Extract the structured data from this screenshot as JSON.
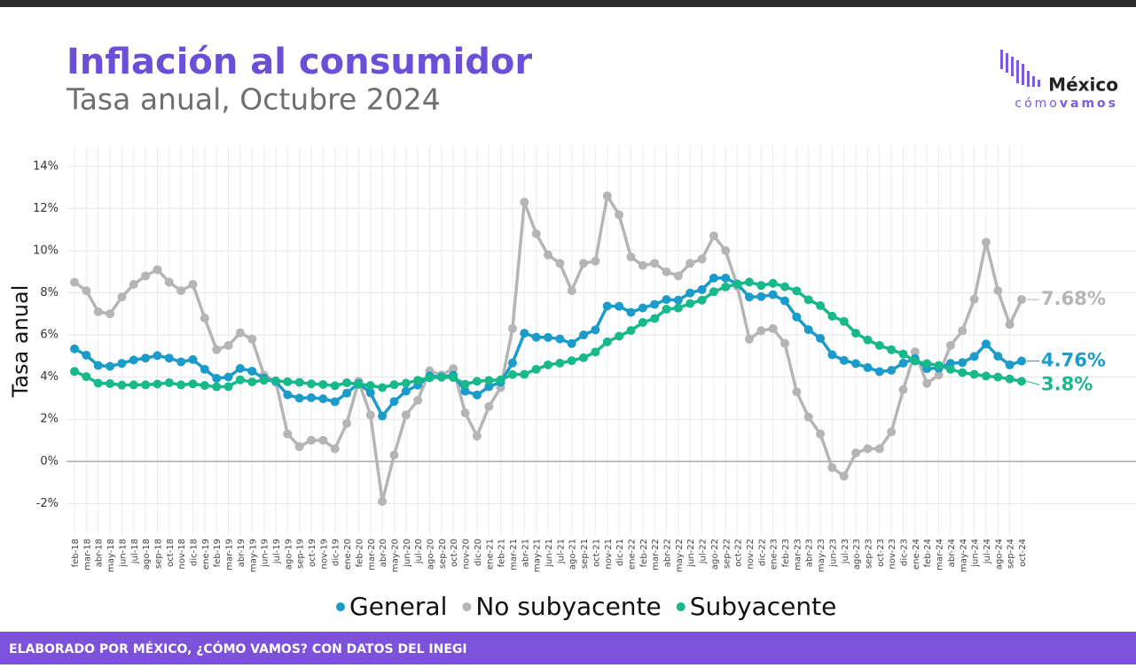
{
  "chart_data": {
    "type": "line",
    "title": "Inflación al consumidor",
    "subtitle": "Tasa anual, Octubre 2024",
    "y_label": "Tasa anual",
    "footer": "ELABORADO POR MÉXICO, ¿CÓMO VAMOS? CON DATOS DEL INEGI",
    "logo": {
      "top": "México",
      "bottom_light": "cómo",
      "bottom_bold": "vamos"
    },
    "categories": [
      "feb-18",
      "mar-18",
      "abr-18",
      "may-18",
      "jun-18",
      "jul-18",
      "ago-18",
      "sep-18",
      "oct-18",
      "nov-18",
      "dic-18",
      "ene-19",
      "feb-19",
      "mar-19",
      "abr-19",
      "may-19",
      "jun-19",
      "jul-19",
      "ago-19",
      "sep-19",
      "oct-19",
      "nov-19",
      "dic-19",
      "ene-20",
      "feb-20",
      "mar-20",
      "abr-20",
      "may-20",
      "jun-20",
      "jul-20",
      "ago-20",
      "sep-20",
      "oct-20",
      "nov-20",
      "dic-20",
      "ene-21",
      "feb-21",
      "mar-21",
      "abr-21",
      "may-21",
      "jun-21",
      "jul-21",
      "ago-21",
      "sep-21",
      "oct-21",
      "nov-21",
      "dic-21",
      "ene-22",
      "feb-22",
      "mar-22",
      "abr-22",
      "may-22",
      "jun-22",
      "jul-22",
      "ago-22",
      "sep-22",
      "oct-22",
      "nov-22",
      "dic-22",
      "ene-23",
      "feb-23",
      "mar-23",
      "abr-23",
      "may-23",
      "jun-23",
      "jul-23",
      "ago-23",
      "sep-23",
      "oct-23",
      "nov-23",
      "dic-23",
      "ene-24",
      "feb-24",
      "mar-24",
      "abr-24",
      "may-24",
      "jun-24",
      "jul-24",
      "ago-24",
      "sep-24",
      "oct-24"
    ],
    "series": [
      {
        "name": "General",
        "color": "#1a9bc9",
        "values": [
          5.34,
          5.04,
          4.55,
          4.51,
          4.65,
          4.81,
          4.9,
          5.02,
          4.9,
          4.72,
          4.83,
          4.37,
          3.94,
          4.0,
          4.41,
          4.28,
          3.95,
          3.78,
          3.16,
          3.0,
          3.02,
          2.97,
          2.83,
          3.24,
          3.7,
          3.25,
          2.15,
          2.84,
          3.33,
          3.62,
          4.05,
          4.01,
          4.09,
          3.33,
          3.15,
          3.54,
          3.76,
          4.67,
          6.08,
          5.89,
          5.88,
          5.81,
          5.59,
          6.0,
          6.24,
          7.37,
          7.36,
          7.07,
          7.28,
          7.45,
          7.68,
          7.65,
          7.99,
          8.15,
          8.7,
          8.7,
          8.41,
          7.8,
          7.82,
          7.91,
          7.62,
          6.85,
          6.25,
          5.84,
          5.06,
          4.79,
          4.64,
          4.45,
          4.26,
          4.32,
          4.66,
          4.88,
          4.4,
          4.42,
          4.65,
          4.69,
          4.98,
          5.57,
          4.99,
          4.58,
          4.76
        ],
        "value_labels": [
          null,
          null,
          null,
          null,
          null,
          null,
          null,
          null,
          null,
          null,
          null,
          null,
          null,
          null,
          null,
          null,
          null,
          null,
          null,
          null,
          null,
          null,
          null,
          null,
          null,
          null,
          null,
          null,
          null,
          null,
          null,
          null,
          null,
          null,
          null,
          null,
          null,
          null,
          null,
          null,
          null,
          null,
          null,
          null,
          null,
          null,
          null,
          null,
          null,
          null,
          null,
          null,
          null,
          null,
          null,
          null,
          null,
          null,
          null,
          null,
          null,
          null,
          null,
          null,
          null,
          null,
          null,
          null,
          null,
          null,
          null,
          null,
          null,
          null,
          null,
          null,
          null,
          null,
          null,
          null,
          "4.76%"
        ]
      },
      {
        "name": "No subyacente",
        "color": "#b5b5b5",
        "values": [
          8.5,
          8.1,
          7.1,
          7.0,
          7.8,
          8.4,
          8.8,
          9.1,
          8.5,
          8.1,
          8.4,
          6.8,
          5.3,
          5.5,
          6.1,
          5.8,
          4.1,
          3.8,
          1.3,
          0.7,
          1.0,
          1.0,
          0.6,
          1.8,
          3.8,
          2.2,
          -1.9,
          0.3,
          2.2,
          2.9,
          4.3,
          4.1,
          4.4,
          2.3,
          1.2,
          2.6,
          3.5,
          6.3,
          12.3,
          10.8,
          9.8,
          9.4,
          8.1,
          9.4,
          9.5,
          12.6,
          11.7,
          9.7,
          9.3,
          9.4,
          9.0,
          8.8,
          9.4,
          9.6,
          10.7,
          10.0,
          8.3,
          5.8,
          6.2,
          6.3,
          5.6,
          3.3,
          2.1,
          1.3,
          -0.3,
          -0.7,
          0.4,
          0.6,
          0.6,
          1.4,
          3.4,
          5.2,
          3.7,
          4.1,
          5.5,
          6.2,
          7.7,
          10.4,
          8.1,
          6.5,
          7.68
        ],
        "value_labels": [
          null,
          null,
          null,
          null,
          null,
          null,
          null,
          null,
          null,
          null,
          null,
          null,
          null,
          null,
          null,
          null,
          null,
          null,
          null,
          null,
          null,
          null,
          null,
          null,
          null,
          null,
          null,
          null,
          null,
          null,
          null,
          null,
          null,
          null,
          null,
          null,
          null,
          null,
          null,
          null,
          null,
          null,
          null,
          null,
          null,
          null,
          null,
          null,
          null,
          null,
          null,
          null,
          null,
          null,
          null,
          null,
          null,
          null,
          null,
          null,
          null,
          null,
          null,
          null,
          null,
          null,
          null,
          null,
          null,
          null,
          null,
          null,
          null,
          null,
          null,
          null,
          null,
          null,
          null,
          null,
          "7.68%"
        ]
      },
      {
        "name": "Subyacente",
        "color": "#17b98a",
        "values": [
          4.27,
          4.02,
          3.71,
          3.69,
          3.62,
          3.63,
          3.63,
          3.67,
          3.73,
          3.63,
          3.68,
          3.6,
          3.54,
          3.55,
          3.87,
          3.77,
          3.85,
          3.82,
          3.78,
          3.75,
          3.68,
          3.65,
          3.59,
          3.73,
          3.66,
          3.6,
          3.5,
          3.64,
          3.71,
          3.85,
          3.97,
          3.99,
          3.98,
          3.66,
          3.8,
          3.84,
          3.87,
          4.12,
          4.13,
          4.37,
          4.58,
          4.66,
          4.78,
          4.92,
          5.19,
          5.67,
          5.94,
          6.21,
          6.59,
          6.78,
          7.22,
          7.28,
          7.49,
          7.65,
          8.05,
          8.28,
          8.42,
          8.51,
          8.35,
          8.45,
          8.29,
          8.09,
          7.67,
          7.39,
          6.89,
          6.64,
          6.08,
          5.76,
          5.5,
          5.3,
          5.09,
          4.76,
          4.64,
          4.55,
          4.37,
          4.21,
          4.13,
          4.05,
          4.0,
          3.91,
          3.8
        ],
        "value_labels": [
          null,
          null,
          null,
          null,
          null,
          null,
          null,
          null,
          null,
          null,
          null,
          null,
          null,
          null,
          null,
          null,
          null,
          null,
          null,
          null,
          null,
          null,
          null,
          null,
          null,
          null,
          null,
          null,
          null,
          null,
          null,
          null,
          null,
          null,
          null,
          null,
          null,
          null,
          null,
          null,
          null,
          null,
          null,
          null,
          null,
          null,
          null,
          null,
          null,
          null,
          null,
          null,
          null,
          null,
          null,
          null,
          null,
          null,
          null,
          null,
          null,
          null,
          null,
          null,
          null,
          null,
          null,
          null,
          null,
          null,
          null,
          null,
          null,
          null,
          null,
          null,
          null,
          null,
          null,
          null,
          "3.8%"
        ]
      }
    ],
    "ylim": [
      -3.5,
      15
    ],
    "yticks": [
      {
        "value": -2,
        "label": "-2%"
      },
      {
        "value": 0,
        "label": "0%"
      },
      {
        "value": 2,
        "label": "2%"
      },
      {
        "value": 4,
        "label": "4%"
      },
      {
        "value": 6,
        "label": "6%"
      },
      {
        "value": 8,
        "label": "8%"
      },
      {
        "value": 10,
        "label": "10%"
      },
      {
        "value": 12,
        "label": "12%"
      },
      {
        "value": 14,
        "label": "14%"
      }
    ],
    "grid": true
  }
}
